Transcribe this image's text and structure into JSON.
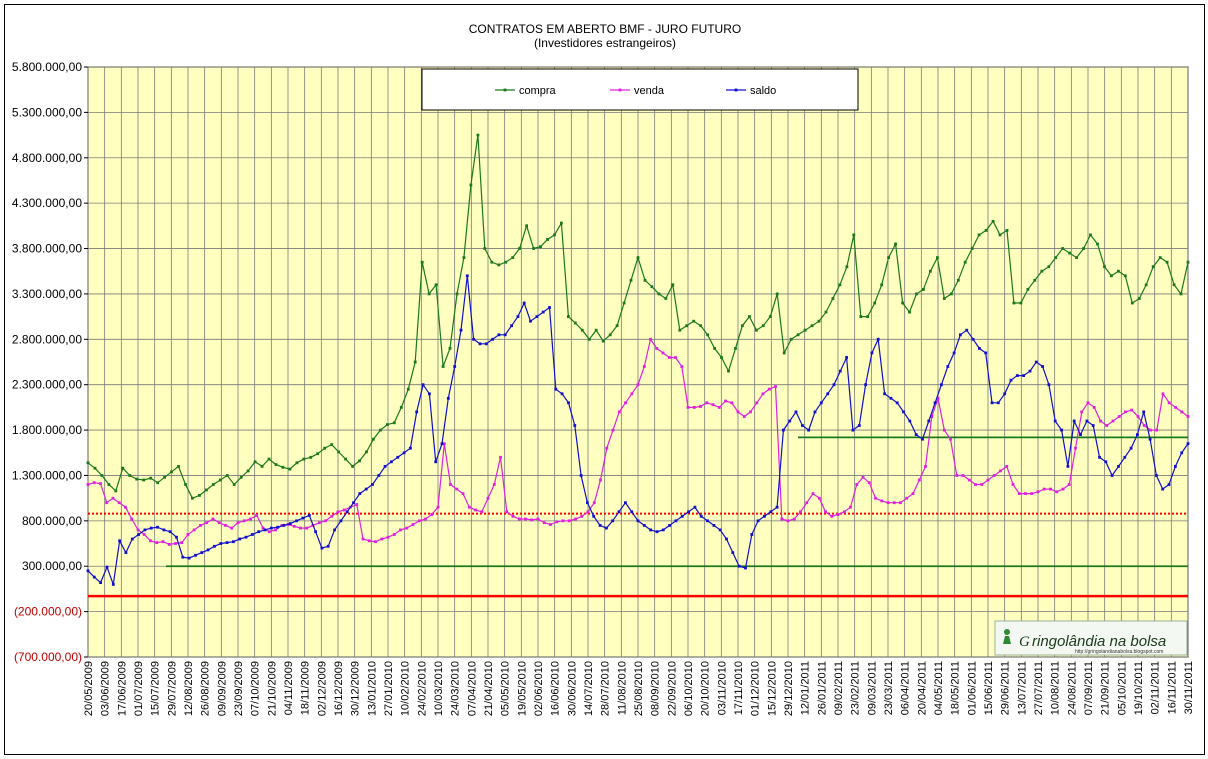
{
  "chart_data": {
    "type": "line",
    "title": "CONTRATOS EM ABERTO BMF  - JURO FUTURO",
    "subtitle": "(Investidores estrangeiros)",
    "ylim": [
      -700000,
      5800000
    ],
    "yticks": [
      {
        "value": 5800000,
        "label": "5.800.000,00"
      },
      {
        "value": 5300000,
        "label": "5.300.000,00"
      },
      {
        "value": 4800000,
        "label": "4.800.000,00"
      },
      {
        "value": 4300000,
        "label": "4.300.000,00"
      },
      {
        "value": 3800000,
        "label": "3.800.000,00"
      },
      {
        "value": 3300000,
        "label": "3.300.000,00"
      },
      {
        "value": 2800000,
        "label": "2.800.000,00"
      },
      {
        "value": 2300000,
        "label": "2.300.000,00"
      },
      {
        "value": 1800000,
        "label": "1.800.000,00"
      },
      {
        "value": 1300000,
        "label": "1.300.000,00"
      },
      {
        "value": 800000,
        "label": "800.000,00"
      },
      {
        "value": 300000,
        "label": "300.000,00"
      },
      {
        "value": -200000,
        "label": "(200.000,00)"
      },
      {
        "value": -700000,
        "label": "(700.000,00)"
      }
    ],
    "xtick_labels": [
      "20/05/2009",
      "03/06/2009",
      "17/06/2009",
      "01/07/2009",
      "15/07/2009",
      "29/07/2009",
      "12/08/2009",
      "26/08/2009",
      "09/09/2009",
      "23/09/2009",
      "07/10/2009",
      "21/10/2009",
      "04/11/2009",
      "18/11/2009",
      "02/12/2009",
      "16/12/2009",
      "30/12/2009",
      "13/01/2010",
      "27/01/2010",
      "10/02/2010",
      "24/02/2010",
      "10/03/2010",
      "24/03/2010",
      "07/04/2010",
      "21/04/2010",
      "05/05/2010",
      "19/05/2010",
      "02/06/2010",
      "16/06/2010",
      "30/06/2010",
      "14/07/2010",
      "28/07/2010",
      "11/08/2010",
      "25/08/2010",
      "08/09/2010",
      "22/09/2010",
      "06/10/2010",
      "20/10/2010",
      "03/11/2010",
      "17/11/2010",
      "01/12/2010",
      "15/12/2010",
      "29/12/2010",
      "12/01/2011",
      "26/01/2011",
      "09/02/2011",
      "23/02/2011",
      "09/03/2011",
      "23/03/2011",
      "06/04/2011",
      "20/04/2011",
      "04/05/2011",
      "18/05/2011",
      "01/06/2011",
      "15/06/2011",
      "29/06/2011",
      "13/07/2011",
      "27/07/2011",
      "10/08/2011",
      "24/08/2011",
      "07/09/2011",
      "21/09/2011",
      "05/10/2011",
      "19/10/2011",
      "02/11/2011",
      "16/11/2011",
      "30/11/2011"
    ],
    "legend": {
      "placement": "top",
      "entries": [
        "compra",
        "venda",
        "saldo"
      ]
    },
    "series": [
      {
        "name": "compra",
        "color": "#1a7a1a",
        "values": [
          1440000,
          1380000,
          1300000,
          1200000,
          1130000,
          1380000,
          1300000,
          1260000,
          1250000,
          1270000,
          1220000,
          1280000,
          1340000,
          1400000,
          1200000,
          1050000,
          1080000,
          1140000,
          1200000,
          1250000,
          1300000,
          1200000,
          1280000,
          1350000,
          1450000,
          1400000,
          1480000,
          1420000,
          1390000,
          1370000,
          1440000,
          1480000,
          1500000,
          1540000,
          1600000,
          1640000,
          1560000,
          1480000,
          1400000,
          1460000,
          1560000,
          1700000,
          1800000,
          1860000,
          1880000,
          2050000,
          2250000,
          2550000,
          3650000,
          3300000,
          3400000,
          2500000,
          2700000,
          3300000,
          3700000,
          4500000,
          5050000,
          3800000,
          3650000,
          3620000,
          3650000,
          3700000,
          3800000,
          4050000,
          3800000,
          3820000,
          3900000,
          3950000,
          4080000,
          3050000,
          2980000,
          2900000,
          2800000,
          2900000,
          2780000,
          2850000,
          2950000,
          3200000,
          3450000,
          3700000,
          3450000,
          3380000,
          3300000,
          3250000,
          3400000,
          2900000,
          2950000,
          3000000,
          2950000,
          2850000,
          2700000,
          2600000,
          2450000,
          2700000,
          2950000,
          3050000,
          2900000,
          2950000,
          3050000,
          3300000,
          2650000,
          2800000,
          2850000,
          2900000,
          2950000,
          3000000,
          3100000,
          3250000,
          3400000,
          3600000,
          3950000,
          3050000,
          3050000,
          3200000,
          3400000,
          3700000,
          3850000,
          3200000,
          3100000,
          3300000,
          3350000,
          3550000,
          3700000,
          3250000,
          3300000,
          3450000,
          3650000,
          3800000,
          3950000,
          4000000,
          4100000,
          3950000,
          4000000,
          3200000,
          3200000,
          3350000,
          3450000,
          3550000,
          3600000,
          3700000,
          3800000,
          3750000,
          3700000,
          3800000,
          3950000,
          3850000,
          3600000,
          3500000,
          3550000,
          3500000,
          3200000,
          3250000,
          3400000,
          3600000,
          3700000,
          3650000,
          3400000,
          3300000,
          3650000
        ]
      },
      {
        "name": "venda",
        "color": "#e020e0",
        "values": [
          1200000,
          1220000,
          1210000,
          1000000,
          1050000,
          1000000,
          950000,
          820000,
          700000,
          650000,
          580000,
          560000,
          570000,
          540000,
          550000,
          560000,
          650000,
          700000,
          750000,
          780000,
          820000,
          780000,
          750000,
          720000,
          780000,
          800000,
          820000,
          860000,
          720000,
          680000,
          700000,
          750000,
          760000,
          740000,
          720000,
          720000,
          750000,
          780000,
          800000,
          850000,
          900000,
          920000,
          950000,
          980000,
          600000,
          580000,
          570000,
          600000,
          620000,
          650000,
          700000,
          720000,
          760000,
          800000,
          820000,
          870000,
          950000,
          1650000,
          1200000,
          1150000,
          1100000,
          950000,
          920000,
          900000,
          1050000,
          1200000,
          1500000,
          900000,
          850000,
          820000,
          820000,
          810000,
          820000,
          780000,
          760000,
          790000,
          800000,
          800000,
          820000,
          850000,
          900000,
          1000000,
          1250000,
          1600000,
          1800000,
          2000000,
          2100000,
          2200000,
          2300000,
          2500000,
          2800000,
          2700000,
          2650000,
          2600000,
          2600000,
          2500000,
          2050000,
          2050000,
          2060000,
          2100000,
          2080000,
          2050000,
          2120000,
          2100000,
          2000000,
          1950000,
          2000000,
          2100000,
          2200000,
          2250000,
          2280000,
          820000,
          800000,
          820000,
          900000,
          1000000,
          1100000,
          1050000,
          900000,
          850000,
          870000,
          900000,
          950000,
          1200000,
          1280000,
          1220000,
          1050000,
          1020000,
          1000000,
          1000000,
          1000000,
          1050000,
          1100000,
          1250000,
          1400000,
          1950000,
          2150000,
          1800000,
          1700000,
          1300000,
          1300000,
          1250000,
          1200000,
          1200000,
          1250000,
          1300000,
          1350000,
          1400000,
          1200000,
          1100000,
          1100000,
          1100000,
          1120000,
          1150000,
          1150000,
          1120000,
          1150000,
          1200000,
          1600000,
          2000000,
          2100000,
          2050000,
          1900000,
          1850000,
          1900000,
          1950000,
          2000000,
          2020000,
          1950000,
          1850000,
          1800000,
          1800000,
          2200000,
          2100000,
          2050000,
          2000000,
          1950000
        ]
      },
      {
        "name": "saldo",
        "color": "#1010d0",
        "values": [
          250000,
          180000,
          120000,
          290000,
          100000,
          580000,
          450000,
          600000,
          650000,
          700000,
          720000,
          730000,
          700000,
          680000,
          620000,
          400000,
          390000,
          420000,
          450000,
          480000,
          520000,
          550000,
          560000,
          570000,
          600000,
          620000,
          650000,
          680000,
          700000,
          720000,
          730000,
          750000,
          770000,
          800000,
          830000,
          860000,
          680000,
          500000,
          520000,
          700000,
          800000,
          900000,
          1000000,
          1100000,
          1150000,
          1200000,
          1300000,
          1400000,
          1450000,
          1500000,
          1550000,
          1600000,
          2000000,
          2300000,
          2200000,
          1450000,
          1650000,
          2150000,
          2500000,
          2900000,
          3500000,
          2800000,
          2750000,
          2750000,
          2800000,
          2850000,
          2850000,
          2950000,
          3050000,
          3200000,
          3000000,
          3050000,
          3100000,
          3150000,
          2250000,
          2200000,
          2100000,
          1850000,
          1300000,
          1000000,
          850000,
          750000,
          720000,
          800000,
          900000,
          1000000,
          900000,
          800000,
          750000,
          700000,
          680000,
          700000,
          750000,
          800000,
          850000,
          900000,
          950000,
          850000,
          800000,
          750000,
          700000,
          600000,
          450000,
          300000,
          280000,
          650000,
          800000,
          850000,
          900000,
          950000,
          1800000,
          1900000,
          2000000,
          1850000,
          1800000,
          2000000,
          2100000,
          2200000,
          2300000,
          2450000,
          2600000,
          1800000,
          1850000,
          2300000,
          2650000,
          2800000,
          2200000,
          2150000,
          2100000,
          2000000,
          1900000,
          1750000,
          1700000,
          1900000,
          2100000,
          2300000,
          2500000,
          2650000,
          2850000,
          2900000,
          2800000,
          2700000,
          2650000,
          2100000,
          2100000,
          2200000,
          2350000,
          2400000,
          2400000,
          2450000,
          2550000,
          2500000,
          2300000,
          1900000,
          1800000,
          1400000,
          1900000,
          1750000,
          1900000,
          1850000,
          1500000,
          1450000,
          1300000,
          1400000,
          1500000,
          1600000,
          1750000,
          2000000,
          1700000,
          1300000,
          1150000,
          1200000,
          1400000,
          1550000,
          1650000
        ]
      }
    ],
    "reference_lines": [
      {
        "value": 300000,
        "color": "#1a7a1a",
        "style": "solid"
      },
      {
        "value": -30000,
        "color": "#ff0000",
        "style": "solid"
      },
      {
        "value": 880000,
        "color": "#ff0000",
        "style": "dotted"
      },
      {
        "value": 1720000,
        "color": "#1a7a1a",
        "style": "solid"
      }
    ],
    "grid": true,
    "plot_background": "#ffffc0"
  },
  "watermark": {
    "text": "ringolândia na bolsa",
    "initial": "G",
    "url": "http://gringolandianabolsa.blogspot.com"
  }
}
